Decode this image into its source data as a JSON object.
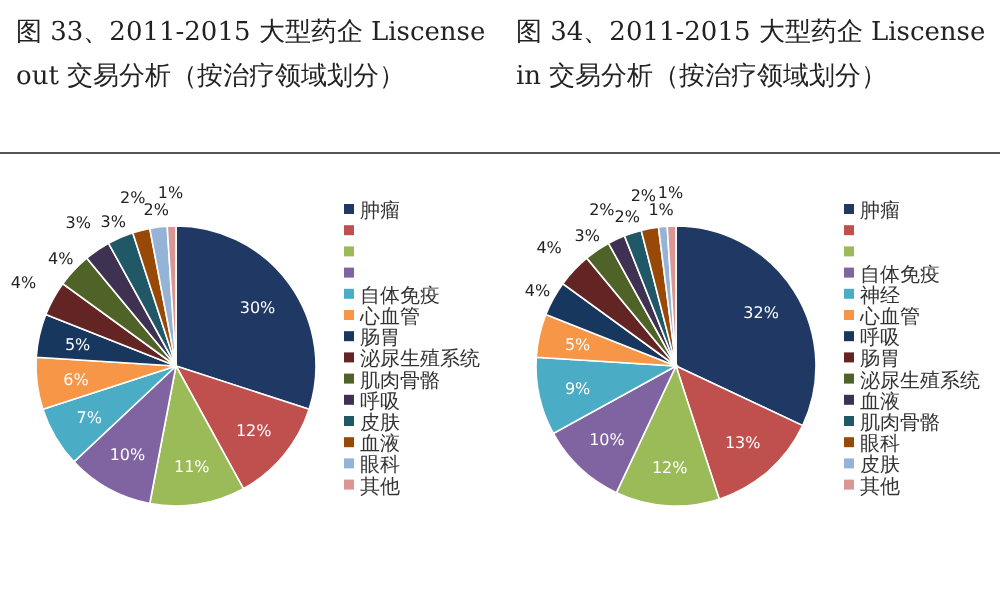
{
  "chart_data": [
    {
      "type": "pie",
      "title": "图 33、2011-2015 大型药企 Liscense out 交易分析（按治疗领域划分）",
      "categories": [
        "肿瘤",
        null,
        null,
        null,
        "自体免疫",
        "心血管",
        "肠胃",
        "泌尿生殖系统",
        "肌肉骨骼",
        "呼吸",
        "皮肤",
        "血液",
        "眼科",
        "其他"
      ],
      "values": [
        30,
        12,
        11,
        10,
        7,
        6,
        5,
        4,
        4,
        3,
        3,
        2,
        2,
        1
      ],
      "colors": [
        "#1f3864",
        "#c0504d",
        "#9bbb59",
        "#8064a2",
        "#4bacc6",
        "#f79646",
        "#17375e",
        "#632523",
        "#4f6228",
        "#3f3151",
        "#205867",
        "#984807",
        "#95b3d7",
        "#d99694"
      ],
      "value_labels": [
        "30%",
        "12%",
        "11%",
        "10%",
        "7%",
        "6%",
        "5%",
        "4%",
        "4%",
        "3%",
        "3%",
        "2%",
        "2%",
        "1%"
      ],
      "legend": "right"
    },
    {
      "type": "pie",
      "title": "图 34、2011-2015 大型药企 Liscense in 交易分析（按治疗领域划分）",
      "categories": [
        "肿瘤",
        null,
        null,
        "自体免疫",
        "神经",
        "心血管",
        "呼吸",
        "肠胃",
        "泌尿生殖系统",
        "血液",
        "肌肉骨骼",
        "眼科",
        "皮肤",
        "其他"
      ],
      "values": [
        32,
        13,
        12,
        10,
        9,
        5,
        4,
        4,
        3,
        2,
        2,
        2,
        1,
        1
      ],
      "colors": [
        "#1f3864",
        "#c0504d",
        "#9bbb59",
        "#8064a2",
        "#4bacc6",
        "#f79646",
        "#17375e",
        "#632523",
        "#4f6228",
        "#3f3151",
        "#205867",
        "#984807",
        "#95b3d7",
        "#d99694"
      ],
      "value_labels": [
        "32%",
        "13%",
        "12%",
        "10%",
        "9%",
        "5%",
        "4%",
        "4%",
        "3%",
        "2%",
        "2%",
        "2%",
        "1%",
        "1%"
      ],
      "legend": "right"
    }
  ]
}
